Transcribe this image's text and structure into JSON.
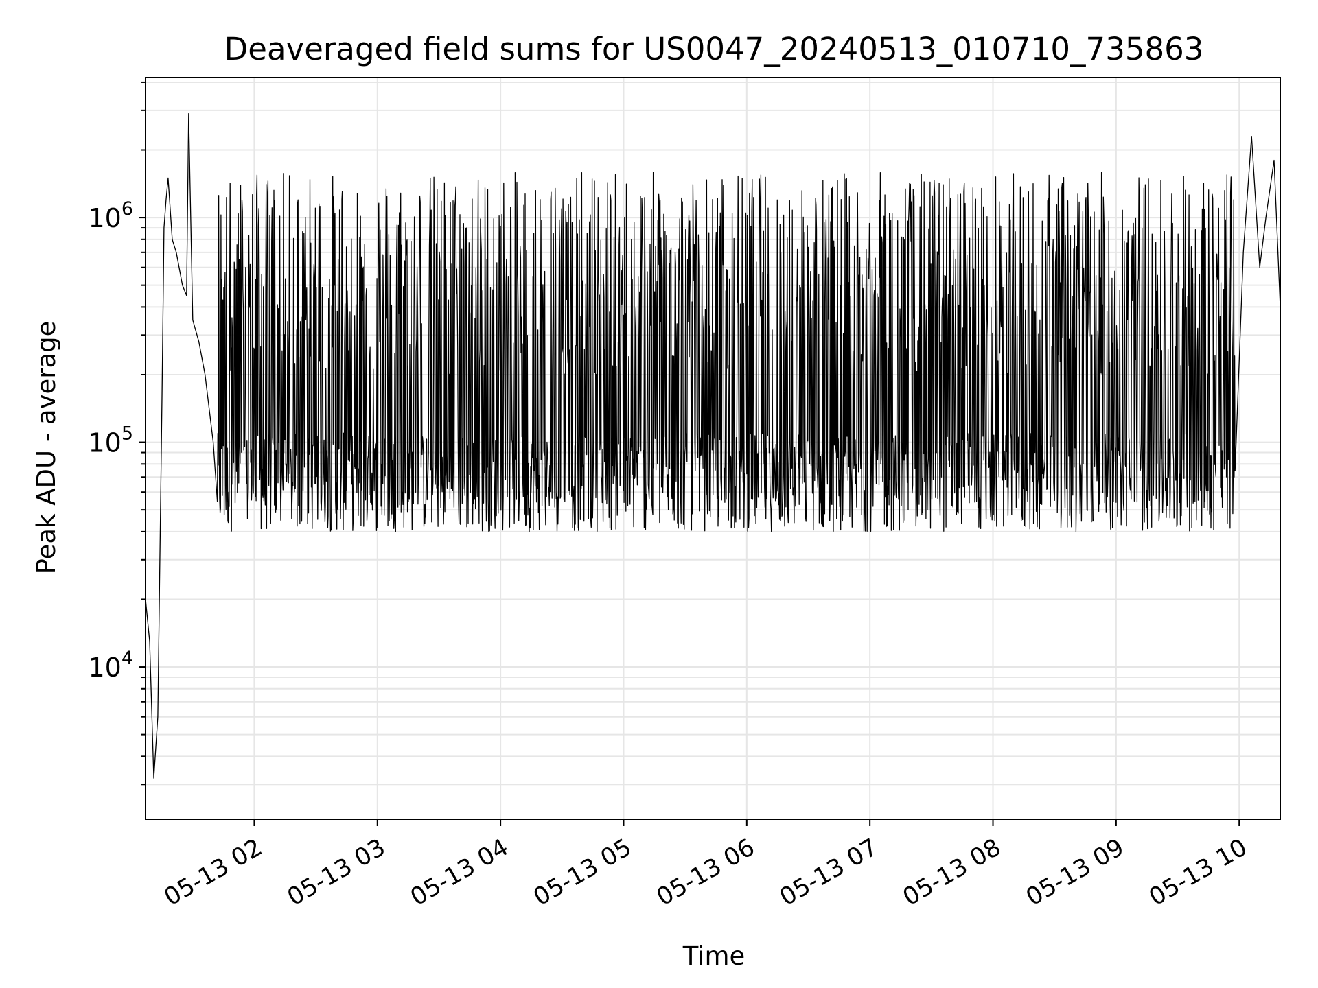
{
  "chart_data": {
    "type": "line",
    "title": "Deaveraged field sums for US0047_20240513_010710_735863",
    "xlabel": "Time",
    "ylabel": "Peak ADU - average",
    "yscale": "log",
    "grid": true,
    "line_color": "#000000",
    "grid_color": "#e6e6e6",
    "xlim": [
      "2024-05-13 01:07",
      "2024-05-13 10:20"
    ],
    "ylim": [
      2100,
      4200000
    ],
    "x_ticks": [
      {
        "value": "2024-05-13 02:00",
        "label": "05-13 02"
      },
      {
        "value": "2024-05-13 03:00",
        "label": "05-13 03"
      },
      {
        "value": "2024-05-13 04:00",
        "label": "05-13 04"
      },
      {
        "value": "2024-05-13 05:00",
        "label": "05-13 05"
      },
      {
        "value": "2024-05-13 06:00",
        "label": "05-13 06"
      },
      {
        "value": "2024-05-13 07:00",
        "label": "05-13 07"
      },
      {
        "value": "2024-05-13 08:00",
        "label": "05-13 08"
      },
      {
        "value": "2024-05-13 09:00",
        "label": "05-13 09"
      },
      {
        "value": "2024-05-13 10:00",
        "label": "05-13 10"
      }
    ],
    "y_ticks": [
      {
        "value": 10000,
        "base": "10",
        "exp": "4"
      },
      {
        "value": 100000,
        "base": "10",
        "exp": "5"
      },
      {
        "value": 1000000,
        "base": "10",
        "exp": "6"
      }
    ],
    "series": [
      {
        "x": [
          "2024-05-13 01:07",
          "2024-05-13 01:09",
          "2024-05-13 01:11",
          "2024-05-13 01:13",
          "2024-05-13 01:15",
          "2024-05-13 01:16",
          "2024-05-13 01:17",
          "2024-05-13 01:18",
          "2024-05-13 01:20",
          "2024-05-13 01:22",
          "2024-05-13 01:25",
          "2024-05-13 01:27",
          "2024-05-13 01:28",
          "2024-05-13 01:30",
          "2024-05-13 01:33",
          "2024-05-13 01:36",
          "2024-05-13 01:40",
          "2024-05-13 01:45",
          "2024-05-13 01:50",
          "2024-05-13 09:53",
          "2024-05-13 09:58",
          "2024-05-13 10:02",
          "2024-05-13 10:06",
          "2024-05-13 10:10",
          "2024-05-13 10:13",
          "2024-05-13 10:17",
          "2024-05-13 10:20"
        ],
        "y": [
          20000,
          13000,
          3200,
          6000,
          150000,
          900000,
          1200000,
          1500000,
          800000,
          700000,
          500000,
          450000,
          2900000,
          350000,
          280000,
          200000,
          100000,
          70000,
          60000,
          300000,
          400000,
          700000,
          2300000,
          600000,
          1000000,
          1800000,
          400000
        ]
      }
    ],
    "noise_band": {
      "x_start": "2024-05-13 01:42",
      "x_end": "2024-05-13 09:58",
      "low_range": [
        40000,
        110000
      ],
      "high_range": [
        200000,
        1600000
      ]
    }
  }
}
